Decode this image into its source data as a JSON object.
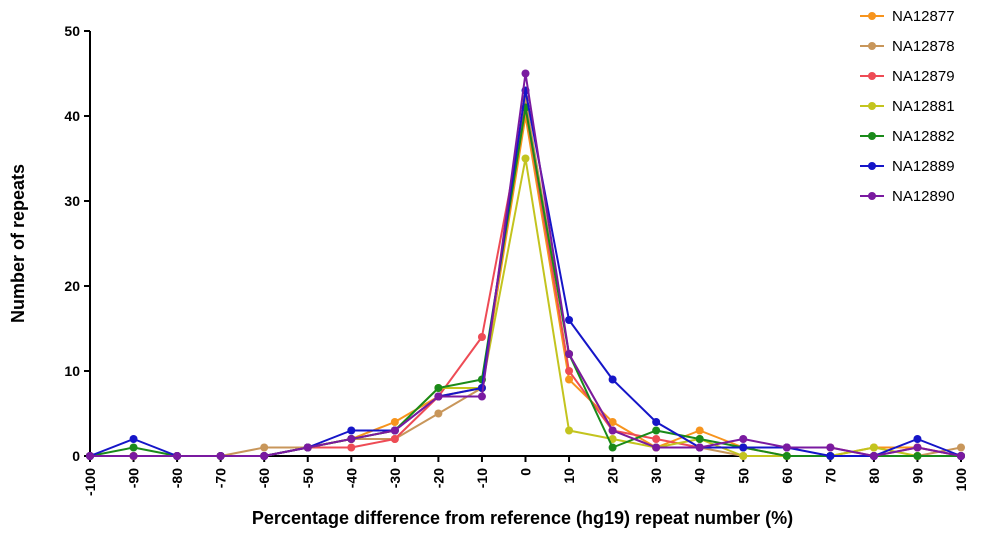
{
  "chart_data": {
    "type": "line",
    "title": "",
    "xlabel": "Percentage difference from reference (hg19) repeat number (%)",
    "ylabel": "Number of repeats",
    "x": [
      -100,
      -90,
      -80,
      -70,
      -60,
      -50,
      -40,
      -30,
      -20,
      -10,
      0,
      10,
      20,
      30,
      40,
      50,
      60,
      70,
      80,
      90,
      100
    ],
    "xlim": [
      -100,
      100
    ],
    "ylim": [
      0,
      50
    ],
    "x_ticks": [
      "-100",
      "-90",
      "-80",
      "-70",
      "-60",
      "-50",
      "-40",
      "-30",
      "-20",
      "-10",
      "0",
      "10",
      "20",
      "30",
      "40",
      "50",
      "60",
      "70",
      "80",
      "90",
      "100"
    ],
    "y_ticks": [
      "0",
      "10",
      "20",
      "30",
      "40",
      "50"
    ],
    "grid": false,
    "legend_position": "top-right",
    "series": [
      {
        "name": "NA12877",
        "color": "#F7941D",
        "values": [
          0,
          0,
          0,
          0,
          0,
          1,
          2,
          4,
          7,
          8,
          40,
          9,
          4,
          1,
          3,
          1,
          0,
          0,
          1,
          1,
          0
        ]
      },
      {
        "name": "NA12878",
        "color": "#C8965A",
        "values": [
          0,
          0,
          0,
          0,
          1,
          1,
          2,
          2,
          5,
          8,
          42,
          12,
          3,
          1,
          1,
          0,
          0,
          0,
          0,
          0,
          1
        ]
      },
      {
        "name": "NA12879",
        "color": "#EE4B55",
        "values": [
          0,
          0,
          0,
          0,
          0,
          1,
          1,
          2,
          7,
          14,
          41,
          10,
          3,
          2,
          1,
          1,
          1,
          1,
          0,
          1,
          0
        ]
      },
      {
        "name": "NA12881",
        "color": "#C3C41E",
        "values": [
          0,
          0,
          0,
          0,
          0,
          1,
          2,
          3,
          8,
          8,
          35,
          3,
          2,
          1,
          2,
          0,
          0,
          0,
          1,
          0,
          0
        ]
      },
      {
        "name": "NA12882",
        "color": "#1A8A1A",
        "values": [
          0,
          1,
          0,
          0,
          0,
          1,
          2,
          3,
          8,
          9,
          41,
          12,
          1,
          3,
          2,
          1,
          0,
          0,
          0,
          0,
          0
        ]
      },
      {
        "name": "NA12889",
        "color": "#1515C8",
        "values": [
          0,
          2,
          0,
          0,
          0,
          1,
          3,
          3,
          7,
          8,
          43,
          16,
          9,
          4,
          1,
          1,
          1,
          0,
          0,
          2,
          0
        ]
      },
      {
        "name": "NA12890",
        "color": "#7A1AA0",
        "values": [
          0,
          0,
          0,
          0,
          0,
          1,
          2,
          3,
          7,
          7,
          45,
          12,
          3,
          1,
          1,
          2,
          1,
          1,
          0,
          1,
          0
        ]
      }
    ]
  }
}
